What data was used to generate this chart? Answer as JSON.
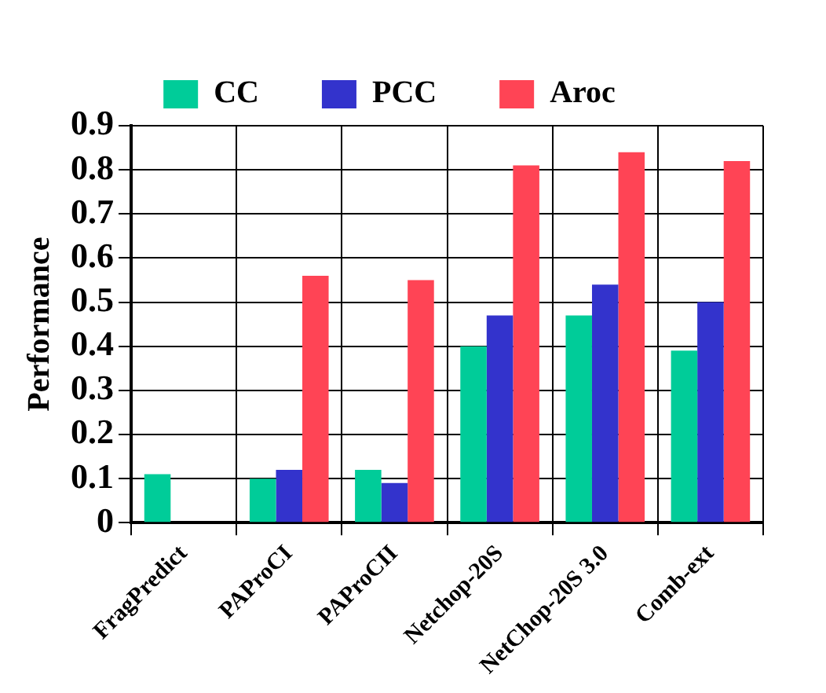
{
  "chart_data": {
    "type": "bar",
    "ylabel": "Performance",
    "categories": [
      "FragPredict",
      "PAProCI",
      "PAProCII",
      "Netchop-20S",
      "NetChop-20S 3.0",
      "Comb-ext"
    ],
    "series": [
      {
        "name": "CC",
        "color": "#00cc99",
        "values": [
          0.11,
          0.1,
          0.12,
          0.4,
          0.47,
          0.39
        ]
      },
      {
        "name": "PCC",
        "color": "#3333cc",
        "values": [
          null,
          0.12,
          0.09,
          0.47,
          0.54,
          0.5
        ]
      },
      {
        "name": "Aroc",
        "color": "#ff4455",
        "values": [
          null,
          0.56,
          0.55,
          0.81,
          0.84,
          0.82
        ]
      }
    ],
    "ylim": [
      0,
      0.9
    ],
    "yticks": [
      0,
      0.1,
      0.2,
      0.3,
      0.4,
      0.5,
      0.6,
      0.7,
      0.8,
      0.9
    ],
    "grid": true,
    "legend": "top"
  }
}
